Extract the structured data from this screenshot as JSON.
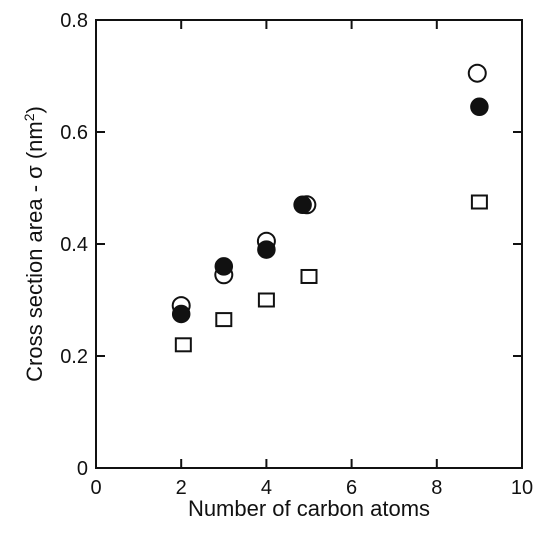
{
  "chart_data": {
    "type": "scatter",
    "title": "",
    "xlabel": "Number of carbon atoms",
    "ylabel_text": "Cross section area - σ (nm",
    "ylabel_sup": "2",
    "ylabel_close": ")",
    "xlim": [
      0,
      10
    ],
    "ylim": [
      0,
      0.8
    ],
    "x_ticks": [
      0,
      2,
      4,
      6,
      8,
      10
    ],
    "x_tick_labels": [
      "0",
      "2",
      "4",
      "6",
      "8",
      "10"
    ],
    "y_ticks": [
      0,
      0.2,
      0.4,
      0.6,
      0.8
    ],
    "y_tick_labels": [
      "0",
      "0.2",
      "0.4",
      "0.6",
      "0.8"
    ],
    "grid": false,
    "legend": "none",
    "series": [
      {
        "marker": "open-circle",
        "color": "#111111",
        "points": [
          {
            "x": 2,
            "y": 0.29
          },
          {
            "x": 3,
            "y": 0.345
          },
          {
            "x": 4,
            "y": 0.405
          },
          {
            "x": 4.95,
            "y": 0.47
          },
          {
            "x": 8.95,
            "y": 0.705
          }
        ]
      },
      {
        "marker": "filled-circle",
        "color": "#111111",
        "points": [
          {
            "x": 2,
            "y": 0.275
          },
          {
            "x": 3,
            "y": 0.36
          },
          {
            "x": 4,
            "y": 0.39
          },
          {
            "x": 4.85,
            "y": 0.47
          },
          {
            "x": 9,
            "y": 0.645
          }
        ]
      },
      {
        "marker": "open-square",
        "color": "#111111",
        "points": [
          {
            "x": 2.05,
            "y": 0.22
          },
          {
            "x": 3,
            "y": 0.265
          },
          {
            "x": 4,
            "y": 0.3
          },
          {
            "x": 5,
            "y": 0.342
          },
          {
            "x": 9,
            "y": 0.475
          }
        ]
      }
    ]
  }
}
